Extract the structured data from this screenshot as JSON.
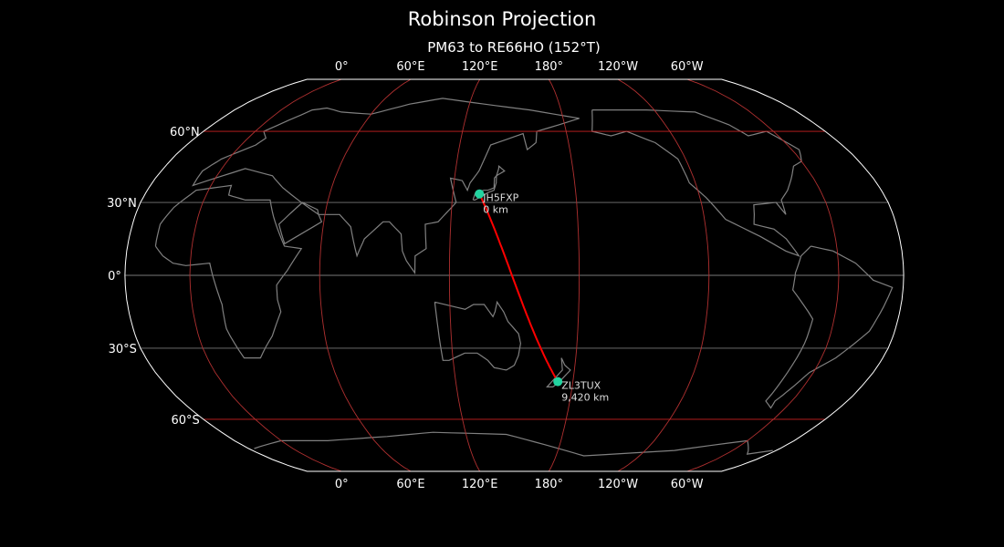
{
  "title": "Robinson Projection",
  "subtitle": "PM63 to RE66HO (152°T)",
  "map": {
    "projection": "robinson",
    "central_longitude": 150,
    "background": "#000000",
    "coastline_color": "#808080",
    "boundary_color": "#ffffff",
    "parallels": [
      {
        "lat": 60,
        "label": "60°N",
        "color": "#cc2222"
      },
      {
        "lat": 30,
        "label": "30°N",
        "color": "#777777"
      },
      {
        "lat": 0,
        "label": "0°",
        "color": "#777777"
      },
      {
        "lat": -30,
        "label": "30°S",
        "color": "#777777"
      },
      {
        "lat": -60,
        "label": "60°S",
        "color": "#cc2222"
      }
    ],
    "meridians": [
      {
        "lon": 0,
        "label": "0°"
      },
      {
        "lon": 60,
        "label": "60°E"
      },
      {
        "lon": 120,
        "label": "120°E"
      },
      {
        "lon": 180,
        "label": "180°"
      },
      {
        "lon": -120,
        "label": "120°W"
      },
      {
        "lon": -60,
        "label": "60°W"
      }
    ],
    "meridian_color": "#b03030",
    "path_color": "#ff0000",
    "station_color": "#22d3a0",
    "stations": [
      {
        "call": "JH5FXP",
        "distance": "0 km",
        "lat": 33.5,
        "lon": 133.0
      },
      {
        "call": "ZL3TUX",
        "distance": "9,420 km",
        "lat": -43.8,
        "lon": 172.3
      }
    ]
  }
}
